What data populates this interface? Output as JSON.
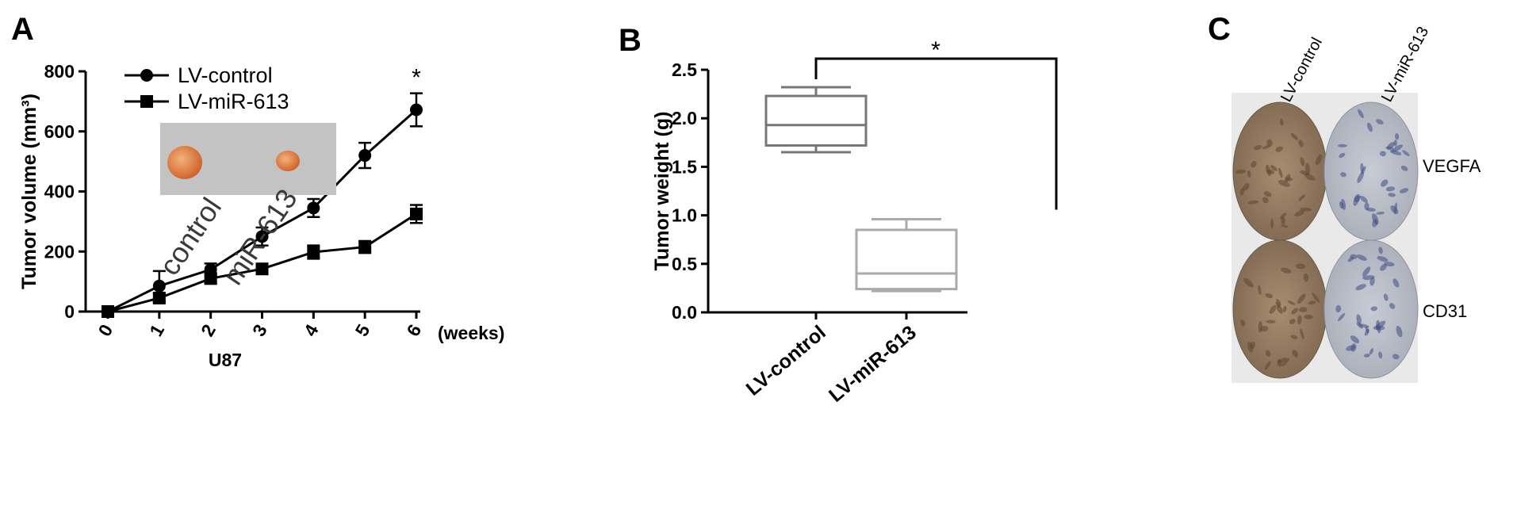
{
  "panels": {
    "a": "A",
    "b": "B",
    "c": "C"
  },
  "chart_data": [
    {
      "type": "line",
      "panel": "A",
      "x": [
        0,
        1,
        2,
        3,
        4,
        5,
        6
      ],
      "x_tick_labels": [
        "0",
        "1",
        "2",
        "3",
        "4",
        "5",
        "6"
      ],
      "x_unit_label": "(weeks)",
      "xlabel": "U87",
      "ylabel": "Tumor volume (mm³)",
      "ylim": [
        0,
        800
      ],
      "y_ticks": [
        0,
        200,
        400,
        600,
        800
      ],
      "legend_position": "top-left",
      "series": [
        {
          "name": "LV-control",
          "marker": "circle",
          "values": [
            0,
            85,
            140,
            250,
            345,
            520,
            672
          ],
          "error": [
            5,
            50,
            20,
            30,
            30,
            42,
            55
          ]
        },
        {
          "name": "LV-miR-613",
          "marker": "square",
          "values": [
            0,
            45,
            110,
            142,
            198,
            215,
            325
          ],
          "error": [
            5,
            15,
            15,
            12,
            22,
            20,
            30
          ]
        }
      ],
      "annotations": [
        {
          "x": 6,
          "text": "*"
        }
      ],
      "inset_photo_labels": [
        "control",
        "miR-613"
      ]
    },
    {
      "type": "box",
      "panel": "B",
      "categories": [
        "LV-control",
        "LV-miR-613"
      ],
      "ylabel": "Tumor weight (g)",
      "ylim": [
        0,
        2.5
      ],
      "y_ticks": [
        "0.0",
        "0.5",
        "1.0",
        "1.5",
        "2.0",
        "2.5"
      ],
      "boxes": [
        {
          "name": "LV-control",
          "min": 1.65,
          "q1": 1.72,
          "median": 1.93,
          "q3": 2.23,
          "max": 2.32,
          "color": "#777777"
        },
        {
          "name": "LV-miR-613",
          "min": 0.22,
          "q1": 0.24,
          "median": 0.4,
          "q3": 0.85,
          "max": 0.96,
          "color": "#aaaaaa"
        }
      ],
      "significance": {
        "text": "*"
      }
    }
  ],
  "ihc": {
    "columns": [
      "LV-control",
      "LV-miR-613"
    ],
    "rows": [
      "VEGFA",
      "CD31"
    ]
  }
}
